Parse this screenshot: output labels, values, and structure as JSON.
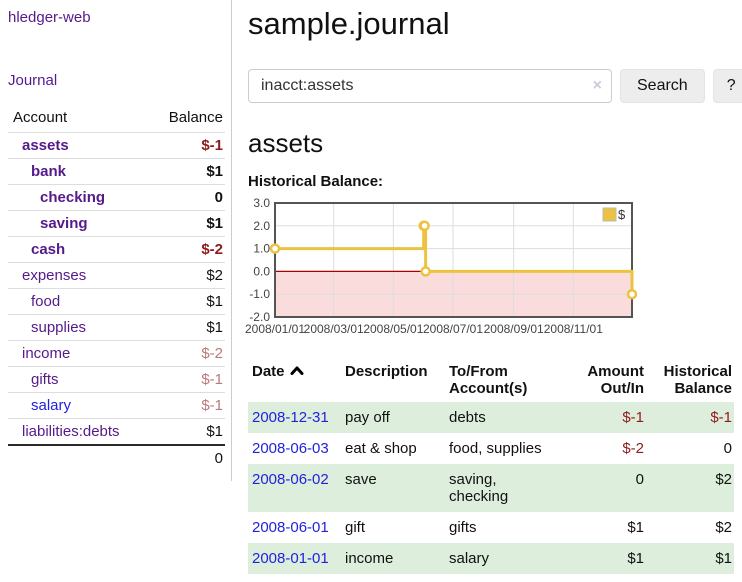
{
  "app": {
    "brand": "hledger-web"
  },
  "sidebar": {
    "journal_link": "Journal",
    "accounts": {
      "col_account": "Account",
      "col_balance": "Balance",
      "rows": [
        {
          "name": "assets",
          "balance": "$-1",
          "depth": 1,
          "bold": true,
          "tone": "neg",
          "link": "purple"
        },
        {
          "name": "bank",
          "balance": "$1",
          "depth": 2,
          "bold": true,
          "tone": "pos",
          "link": "purple"
        },
        {
          "name": "checking",
          "balance": "0",
          "depth": 3,
          "bold": true,
          "tone": "pos",
          "link": "purple"
        },
        {
          "name": "saving",
          "balance": "$1",
          "depth": 3,
          "bold": true,
          "tone": "pos",
          "link": "purple"
        },
        {
          "name": "cash",
          "balance": "$-2",
          "depth": 2,
          "bold": true,
          "tone": "neg",
          "link": "purple"
        },
        {
          "name": "expenses",
          "balance": "$2",
          "depth": 1,
          "bold": false,
          "tone": "pos",
          "link": "purple"
        },
        {
          "name": "food",
          "balance": "$1",
          "depth": 2,
          "bold": false,
          "tone": "pos",
          "link": "purple"
        },
        {
          "name": "supplies",
          "balance": "$1",
          "depth": 2,
          "bold": false,
          "tone": "pos",
          "link": "purple"
        },
        {
          "name": "income",
          "balance": "$-2",
          "depth": 1,
          "bold": false,
          "tone": "neg-soft",
          "link": "purple"
        },
        {
          "name": "gifts",
          "balance": "$-1",
          "depth": 2,
          "bold": false,
          "tone": "neg-soft",
          "link": "purple"
        },
        {
          "name": "salary",
          "balance": "$-1",
          "depth": 2,
          "bold": false,
          "tone": "neg-soft",
          "link": "blue"
        },
        {
          "name": "liabilities:debts",
          "balance": "$1",
          "depth": 1,
          "bold": false,
          "tone": "pos",
          "link": "purple"
        }
      ],
      "total": "0"
    }
  },
  "main": {
    "title": "sample.journal",
    "search": {
      "value": "inacct:assets",
      "clear_glyph": "×",
      "button": "Search",
      "help_button": "?"
    },
    "account_heading": "assets",
    "chart_title": "Historical Balance:",
    "register": {
      "headers": {
        "date": "Date",
        "description": "Description",
        "accounts": "To/From Account(s)",
        "amount": "Amount Out/In",
        "balance": "Historical Balance"
      },
      "rows": [
        {
          "date": "2008-12-31",
          "description": "pay off",
          "accounts": "debts",
          "amount": "$-1",
          "amount_neg": true,
          "balance": "$-1",
          "balance_neg": true,
          "shaded": true
        },
        {
          "date": "2008-06-03",
          "description": "eat & shop",
          "accounts": "food, supplies",
          "amount": "$-2",
          "amount_neg": true,
          "balance": "0",
          "balance_neg": false,
          "shaded": false
        },
        {
          "date": "2008-06-02",
          "description": "save",
          "accounts": "saving, checking",
          "amount": "0",
          "amount_neg": false,
          "balance": "$2",
          "balance_neg": false,
          "shaded": true
        },
        {
          "date": "2008-06-01",
          "description": "gift",
          "accounts": "gifts",
          "amount": "$1",
          "amount_neg": false,
          "balance": "$2",
          "balance_neg": false,
          "shaded": false
        },
        {
          "date": "2008-01-01",
          "description": "income",
          "accounts": "salary",
          "amount": "$1",
          "amount_neg": false,
          "balance": "$1",
          "balance_neg": false,
          "shaded": true
        }
      ]
    }
  },
  "chart_data": {
    "type": "line",
    "step": true,
    "title": "Historical Balance:",
    "series": [
      {
        "name": "$",
        "color": "#edc240",
        "points": [
          [
            "2008-01-01",
            1
          ],
          [
            "2008-06-01",
            2
          ],
          [
            "2008-06-02",
            2
          ],
          [
            "2008-06-03",
            0
          ],
          [
            "2008-12-31",
            -1
          ]
        ]
      }
    ],
    "x_range": [
      "2008-01-01",
      "2008-12-31"
    ],
    "ylim": [
      -2,
      3
    ],
    "y_ticks": [
      "3.0",
      "2.0",
      "1.0",
      "0.0",
      "-1.0",
      "-2.0"
    ],
    "x_ticks": [
      "2008/01/01",
      "2008/03/01",
      "2008/05/01",
      "2008/07/01",
      "2008/09/01",
      "2008/11/01"
    ],
    "legend": {
      "label": "$",
      "position": "top-right"
    },
    "grid": true,
    "negative_region": true
  },
  "colors": {
    "link_purple": "#551a8b",
    "link_blue": "#2222dd",
    "negative": "#8e1b1b",
    "negative_soft": "#b87a7a",
    "row_shade": "#ddeedd",
    "chart_line": "#edc240",
    "chart_negative_fill": "#fbdcdc",
    "chart_zero_line": "#aa0000",
    "chart_border": "#545454",
    "grid_line": "#dddddd",
    "tick_label": "#444444"
  }
}
